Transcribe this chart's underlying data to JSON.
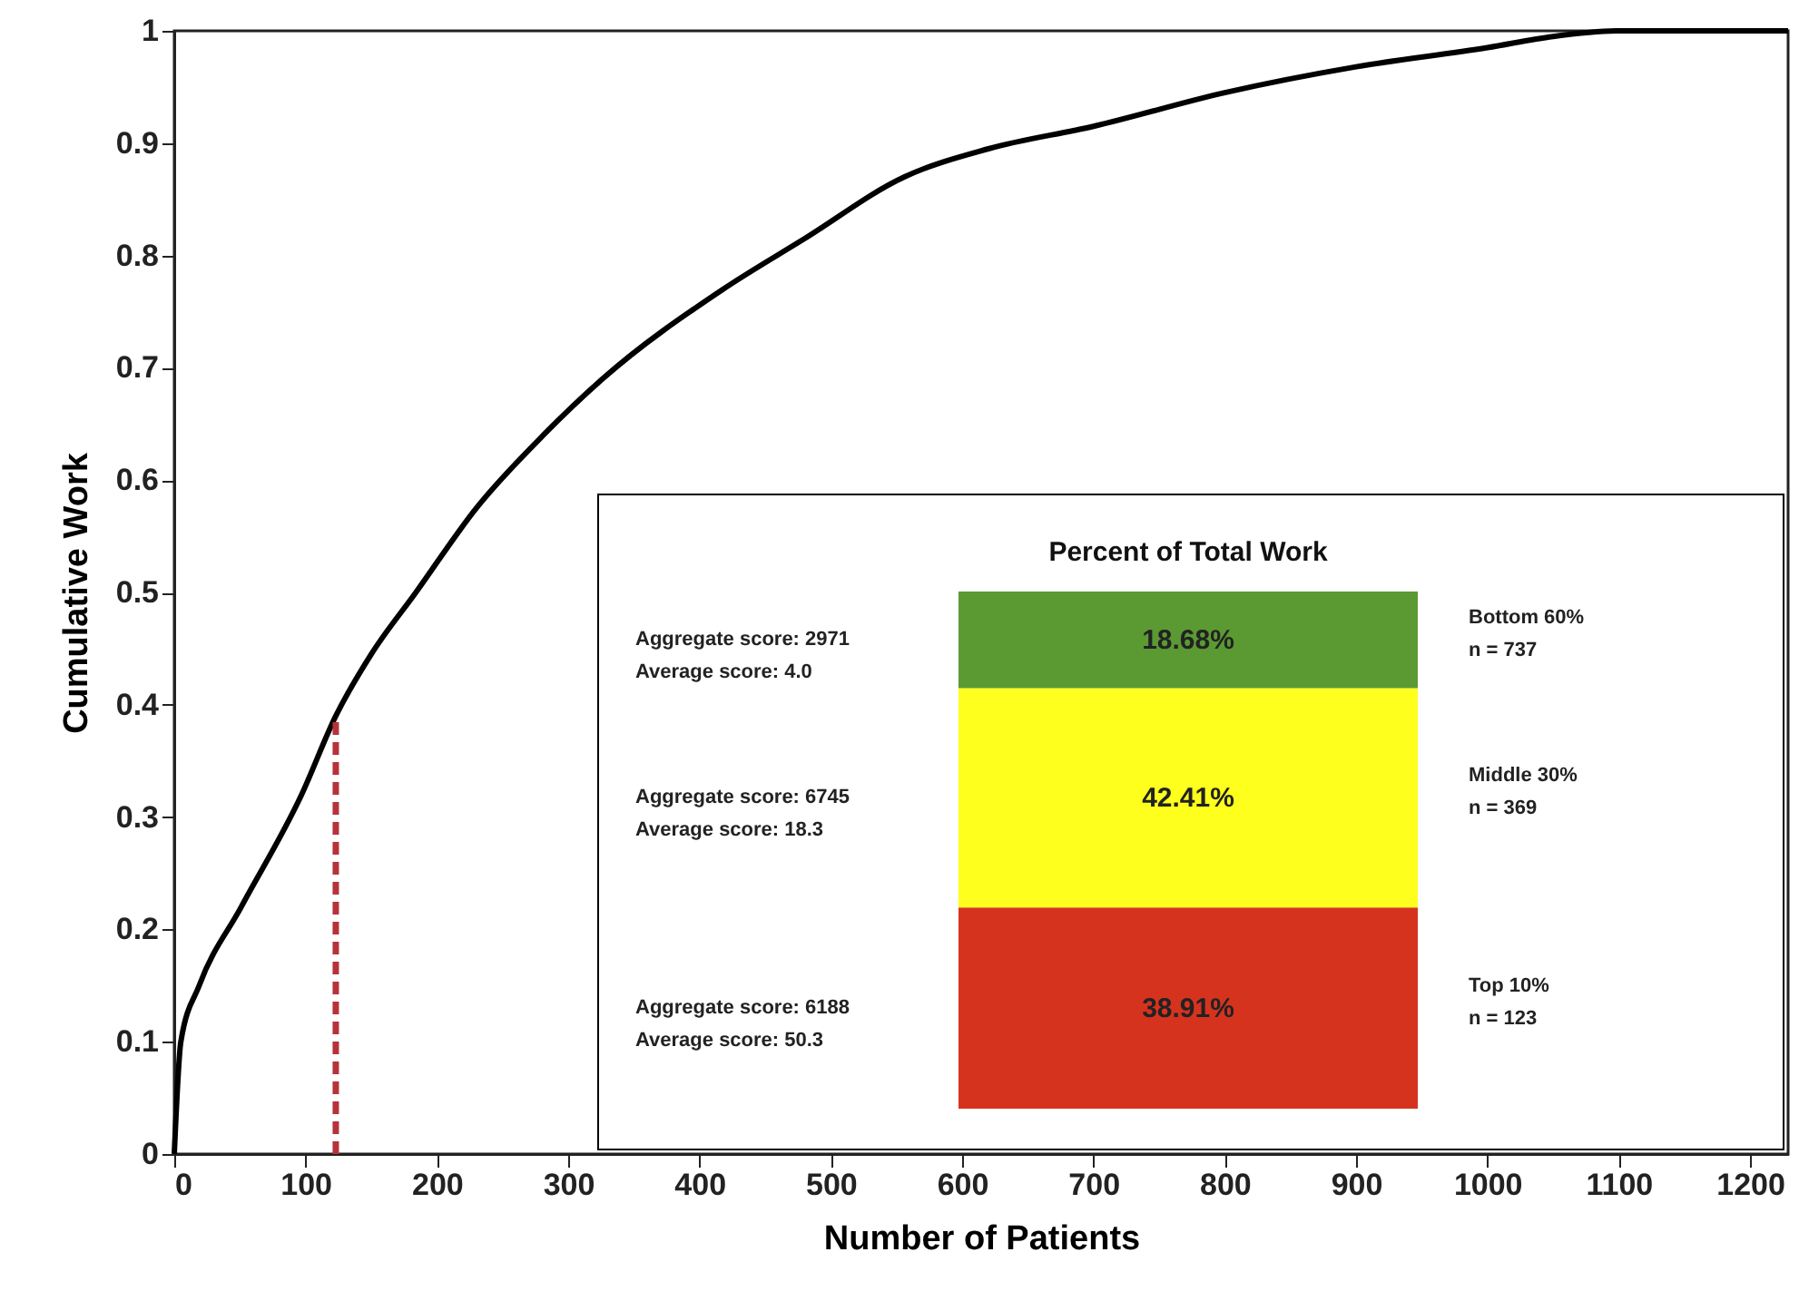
{
  "chart_data": [
    {
      "type": "line",
      "xlabel": "Number of Patients",
      "ylabel": "Cumulative Work",
      "xlim": [
        0,
        1229
      ],
      "xticks": [
        0,
        100,
        200,
        300,
        400,
        500,
        600,
        700,
        800,
        900,
        1000,
        1100,
        1200
      ],
      "ylim": [
        0,
        1
      ],
      "yticks": [
        0,
        0.1,
        0.2,
        0.3,
        0.4,
        0.5,
        0.6,
        0.7,
        0.8,
        0.9,
        1
      ],
      "grid": false,
      "series": [
        {
          "color": "#000000",
          "line_style": "solid",
          "x": [
            0,
            5,
            19,
            51,
            97,
            123,
            150,
            184,
            230,
            281,
            326,
            418,
            480,
            556,
            620,
            700,
            800,
            900,
            1000,
            1050,
            1100,
            1229
          ],
          "values": [
            0,
            0.1,
            0.15,
            0.22,
            0.32,
            0.39,
            0.445,
            0.5,
            0.575,
            0.64,
            0.69,
            0.77,
            0.815,
            0.87,
            0.895,
            0.915,
            0.945,
            0.968,
            0.985,
            0.995,
            1,
            1
          ]
        },
        {
          "type": "line",
          "color": "#b5333a",
          "line_style": "dashed",
          "x": [
            123,
            123
          ],
          "values": [
            0,
            0.39
          ]
        }
      ]
    },
    {
      "type": "bar",
      "title": "Percent of Total Work",
      "stacked": true,
      "categories": [
        null
      ],
      "tick_labels": false,
      "legend": false,
      "series": [
        {
          "color": "#d6331f",
          "values": [
            38.91
          ],
          "value_labels": [
            "38.91%"
          ]
        },
        {
          "color": "#ffff1e",
          "values": [
            42.41
          ],
          "value_labels": [
            "42.41%"
          ]
        },
        {
          "color": "#5b9a33",
          "values": [
            18.68
          ],
          "value_labels": [
            "18.68%"
          ]
        }
      ],
      "annotations": [
        "Aggregate score: 2971",
        "Average score: 4.0",
        "Bottom 60%",
        "n = 737",
        "Aggregate score: 6745",
        "Average score: 18.3",
        "Middle 30%",
        "n = 369",
        "Aggregate score: 6188",
        "Average score: 50.3",
        "Top 10%",
        "n = 123"
      ]
    }
  ]
}
